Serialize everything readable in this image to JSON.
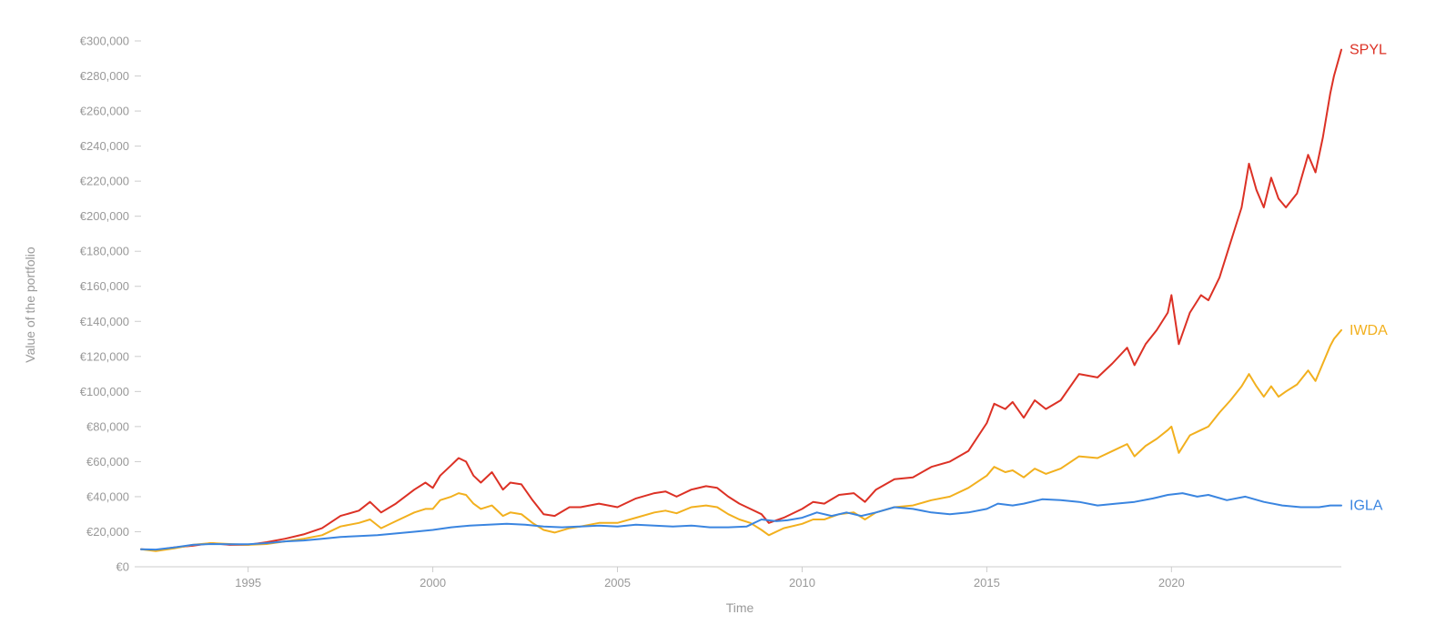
{
  "chart_data": {
    "type": "line",
    "title": "",
    "xlabel": "Time",
    "ylabel": "Value of the portfolio",
    "xlim": [
      1992.1,
      2024.6
    ],
    "ylim": [
      0,
      300000
    ],
    "x_ticks": [
      1995,
      2000,
      2005,
      2010,
      2015,
      2020
    ],
    "x_tick_labels": [
      "1995",
      "2000",
      "2005",
      "2010",
      "2015",
      "2020"
    ],
    "y_ticks": [
      0,
      20000,
      40000,
      60000,
      80000,
      100000,
      120000,
      140000,
      160000,
      180000,
      200000,
      220000,
      240000,
      260000,
      280000,
      300000
    ],
    "y_tick_labels": [
      "€0",
      "€20,000",
      "€40,000",
      "€60,000",
      "€80,000",
      "€100,000",
      "€120,000",
      "€140,000",
      "€160,000",
      "€180,000",
      "€200,000",
      "€220,000",
      "€240,000",
      "€260,000",
      "€280,000",
      "€300,000"
    ],
    "grid": false,
    "legend": "end-of-line labels",
    "series": [
      {
        "name": "SPYL",
        "color": "#dc3125",
        "points": [
          [
            1992.1,
            10000
          ],
          [
            1992.5,
            9500
          ],
          [
            1993.0,
            11000
          ],
          [
            1993.5,
            12000
          ],
          [
            1994.0,
            13500
          ],
          [
            1994.5,
            12500
          ],
          [
            1995.0,
            12500
          ],
          [
            1995.5,
            14000
          ],
          [
            1996.0,
            16000
          ],
          [
            1996.5,
            18500
          ],
          [
            1997.0,
            22000
          ],
          [
            1997.5,
            29000
          ],
          [
            1998.0,
            32000
          ],
          [
            1998.3,
            37000
          ],
          [
            1998.6,
            31000
          ],
          [
            1999.0,
            36000
          ],
          [
            1999.5,
            44000
          ],
          [
            1999.8,
            48000
          ],
          [
            2000.0,
            45000
          ],
          [
            2000.2,
            52000
          ],
          [
            2000.5,
            58000
          ],
          [
            2000.7,
            62000
          ],
          [
            2000.9,
            60000
          ],
          [
            2001.1,
            52000
          ],
          [
            2001.3,
            48000
          ],
          [
            2001.6,
            54000
          ],
          [
            2001.9,
            44000
          ],
          [
            2002.1,
            48000
          ],
          [
            2002.4,
            47000
          ],
          [
            2002.7,
            38000
          ],
          [
            2003.0,
            30000
          ],
          [
            2003.3,
            29000
          ],
          [
            2003.7,
            34000
          ],
          [
            2004.0,
            34000
          ],
          [
            2004.5,
            36000
          ],
          [
            2005.0,
            34000
          ],
          [
            2005.5,
            39000
          ],
          [
            2006.0,
            42000
          ],
          [
            2006.3,
            43000
          ],
          [
            2006.6,
            40000
          ],
          [
            2007.0,
            44000
          ],
          [
            2007.4,
            46000
          ],
          [
            2007.7,
            45000
          ],
          [
            2008.0,
            40000
          ],
          [
            2008.3,
            36000
          ],
          [
            2008.6,
            33000
          ],
          [
            2008.9,
            30000
          ],
          [
            2009.1,
            25000
          ],
          [
            2009.5,
            28000
          ],
          [
            2010.0,
            33000
          ],
          [
            2010.3,
            37000
          ],
          [
            2010.6,
            36000
          ],
          [
            2011.0,
            41000
          ],
          [
            2011.4,
            42000
          ],
          [
            2011.7,
            37000
          ],
          [
            2012.0,
            44000
          ],
          [
            2012.5,
            50000
          ],
          [
            2013.0,
            51000
          ],
          [
            2013.5,
            57000
          ],
          [
            2014.0,
            60000
          ],
          [
            2014.5,
            66000
          ],
          [
            2015.0,
            82000
          ],
          [
            2015.2,
            93000
          ],
          [
            2015.5,
            90000
          ],
          [
            2015.7,
            94000
          ],
          [
            2016.0,
            85000
          ],
          [
            2016.3,
            95000
          ],
          [
            2016.6,
            90000
          ],
          [
            2017.0,
            95000
          ],
          [
            2017.5,
            110000
          ],
          [
            2018.0,
            108000
          ],
          [
            2018.4,
            116000
          ],
          [
            2018.8,
            125000
          ],
          [
            2019.0,
            115000
          ],
          [
            2019.3,
            127000
          ],
          [
            2019.6,
            135000
          ],
          [
            2019.9,
            145000
          ],
          [
            2020.0,
            155000
          ],
          [
            2020.2,
            127000
          ],
          [
            2020.5,
            145000
          ],
          [
            2020.8,
            155000
          ],
          [
            2021.0,
            152000
          ],
          [
            2021.3,
            165000
          ],
          [
            2021.6,
            185000
          ],
          [
            2021.9,
            205000
          ],
          [
            2022.1,
            230000
          ],
          [
            2022.3,
            215000
          ],
          [
            2022.5,
            205000
          ],
          [
            2022.7,
            222000
          ],
          [
            2022.9,
            210000
          ],
          [
            2023.1,
            205000
          ],
          [
            2023.4,
            213000
          ],
          [
            2023.7,
            235000
          ],
          [
            2023.9,
            225000
          ],
          [
            2024.1,
            245000
          ],
          [
            2024.3,
            270000
          ],
          [
            2024.4,
            280000
          ],
          [
            2024.6,
            295000
          ]
        ]
      },
      {
        "name": "IWDA",
        "color": "#f2b01e",
        "points": [
          [
            1992.1,
            10000
          ],
          [
            1992.5,
            9000
          ],
          [
            1993.0,
            10500
          ],
          [
            1993.5,
            12500
          ],
          [
            1994.0,
            13500
          ],
          [
            1994.5,
            13000
          ],
          [
            1995.0,
            12500
          ],
          [
            1995.5,
            13000
          ],
          [
            1996.0,
            14500
          ],
          [
            1996.5,
            16000
          ],
          [
            1997.0,
            18000
          ],
          [
            1997.5,
            23000
          ],
          [
            1998.0,
            25000
          ],
          [
            1998.3,
            27000
          ],
          [
            1998.6,
            22000
          ],
          [
            1999.0,
            26000
          ],
          [
            1999.5,
            31000
          ],
          [
            1999.8,
            33000
          ],
          [
            2000.0,
            33000
          ],
          [
            2000.2,
            38000
          ],
          [
            2000.5,
            40000
          ],
          [
            2000.7,
            42000
          ],
          [
            2000.9,
            41000
          ],
          [
            2001.1,
            36000
          ],
          [
            2001.3,
            33000
          ],
          [
            2001.6,
            35000
          ],
          [
            2001.9,
            29000
          ],
          [
            2002.1,
            31000
          ],
          [
            2002.4,
            30000
          ],
          [
            2002.7,
            25000
          ],
          [
            2003.0,
            21000
          ],
          [
            2003.3,
            19500
          ],
          [
            2003.7,
            22000
          ],
          [
            2004.0,
            23000
          ],
          [
            2004.5,
            25000
          ],
          [
            2005.0,
            25000
          ],
          [
            2005.5,
            28000
          ],
          [
            2006.0,
            31000
          ],
          [
            2006.3,
            32000
          ],
          [
            2006.6,
            30500
          ],
          [
            2007.0,
            34000
          ],
          [
            2007.4,
            35000
          ],
          [
            2007.7,
            34000
          ],
          [
            2008.0,
            30000
          ],
          [
            2008.3,
            27000
          ],
          [
            2008.6,
            25000
          ],
          [
            2008.9,
            21000
          ],
          [
            2009.1,
            18000
          ],
          [
            2009.5,
            22000
          ],
          [
            2010.0,
            24500
          ],
          [
            2010.3,
            27000
          ],
          [
            2010.6,
            27000
          ],
          [
            2011.0,
            30000
          ],
          [
            2011.4,
            31000
          ],
          [
            2011.7,
            27000
          ],
          [
            2012.0,
            31000
          ],
          [
            2012.5,
            34000
          ],
          [
            2013.0,
            35000
          ],
          [
            2013.5,
            38000
          ],
          [
            2014.0,
            40000
          ],
          [
            2014.5,
            45000
          ],
          [
            2015.0,
            52000
          ],
          [
            2015.2,
            57000
          ],
          [
            2015.5,
            54000
          ],
          [
            2015.7,
            55000
          ],
          [
            2016.0,
            51000
          ],
          [
            2016.3,
            56000
          ],
          [
            2016.6,
            53000
          ],
          [
            2017.0,
            56000
          ],
          [
            2017.5,
            63000
          ],
          [
            2018.0,
            62000
          ],
          [
            2018.4,
            66000
          ],
          [
            2018.8,
            70000
          ],
          [
            2019.0,
            63000
          ],
          [
            2019.3,
            69000
          ],
          [
            2019.6,
            73000
          ],
          [
            2019.9,
            78000
          ],
          [
            2020.0,
            80000
          ],
          [
            2020.2,
            65000
          ],
          [
            2020.5,
            75000
          ],
          [
            2020.8,
            78000
          ],
          [
            2021.0,
            80000
          ],
          [
            2021.3,
            88000
          ],
          [
            2021.6,
            95000
          ],
          [
            2021.9,
            103000
          ],
          [
            2022.1,
            110000
          ],
          [
            2022.3,
            103000
          ],
          [
            2022.5,
            97000
          ],
          [
            2022.7,
            103000
          ],
          [
            2022.9,
            97000
          ],
          [
            2023.1,
            100000
          ],
          [
            2023.4,
            104000
          ],
          [
            2023.7,
            112000
          ],
          [
            2023.9,
            106000
          ],
          [
            2024.1,
            116000
          ],
          [
            2024.3,
            126000
          ],
          [
            2024.4,
            130000
          ],
          [
            2024.6,
            135000
          ]
        ]
      },
      {
        "name": "IGLA",
        "color": "#3a85e0",
        "points": [
          [
            1992.1,
            10000
          ],
          [
            1992.5,
            9800
          ],
          [
            1993.0,
            11000
          ],
          [
            1993.5,
            12500
          ],
          [
            1994.0,
            13000
          ],
          [
            1994.5,
            12800
          ],
          [
            1995.0,
            12800
          ],
          [
            1995.5,
            13500
          ],
          [
            1996.0,
            14500
          ],
          [
            1996.5,
            15000
          ],
          [
            1997.0,
            16000
          ],
          [
            1997.5,
            17000
          ],
          [
            1998.0,
            17500
          ],
          [
            1998.5,
            18000
          ],
          [
            1999.0,
            19000
          ],
          [
            1999.5,
            20000
          ],
          [
            2000.0,
            21000
          ],
          [
            2000.5,
            22500
          ],
          [
            2001.0,
            23500
          ],
          [
            2001.5,
            24000
          ],
          [
            2002.0,
            24500
          ],
          [
            2002.5,
            24000
          ],
          [
            2003.0,
            23000
          ],
          [
            2003.5,
            22500
          ],
          [
            2004.0,
            23000
          ],
          [
            2004.5,
            23500
          ],
          [
            2005.0,
            23000
          ],
          [
            2005.5,
            24000
          ],
          [
            2006.0,
            23500
          ],
          [
            2006.5,
            23000
          ],
          [
            2007.0,
            23500
          ],
          [
            2007.5,
            22500
          ],
          [
            2008.0,
            22500
          ],
          [
            2008.5,
            23000
          ],
          [
            2008.9,
            27000
          ],
          [
            2009.3,
            26000
          ],
          [
            2009.6,
            26500
          ],
          [
            2010.0,
            28000
          ],
          [
            2010.4,
            31000
          ],
          [
            2010.8,
            29000
          ],
          [
            2011.2,
            31000
          ],
          [
            2011.6,
            29000
          ],
          [
            2012.0,
            31000
          ],
          [
            2012.5,
            34000
          ],
          [
            2013.0,
            33000
          ],
          [
            2013.5,
            31000
          ],
          [
            2014.0,
            30000
          ],
          [
            2014.5,
            31000
          ],
          [
            2015.0,
            33000
          ],
          [
            2015.3,
            36000
          ],
          [
            2015.7,
            35000
          ],
          [
            2016.0,
            36000
          ],
          [
            2016.5,
            38500
          ],
          [
            2017.0,
            38000
          ],
          [
            2017.5,
            37000
          ],
          [
            2018.0,
            35000
          ],
          [
            2018.5,
            36000
          ],
          [
            2019.0,
            37000
          ],
          [
            2019.5,
            39000
          ],
          [
            2019.9,
            41000
          ],
          [
            2020.3,
            42000
          ],
          [
            2020.7,
            40000
          ],
          [
            2021.0,
            41000
          ],
          [
            2021.5,
            38000
          ],
          [
            2022.0,
            40000
          ],
          [
            2022.5,
            37000
          ],
          [
            2023.0,
            35000
          ],
          [
            2023.5,
            34000
          ],
          [
            2024.0,
            34000
          ],
          [
            2024.3,
            35000
          ],
          [
            2024.6,
            35000
          ]
        ]
      }
    ]
  }
}
